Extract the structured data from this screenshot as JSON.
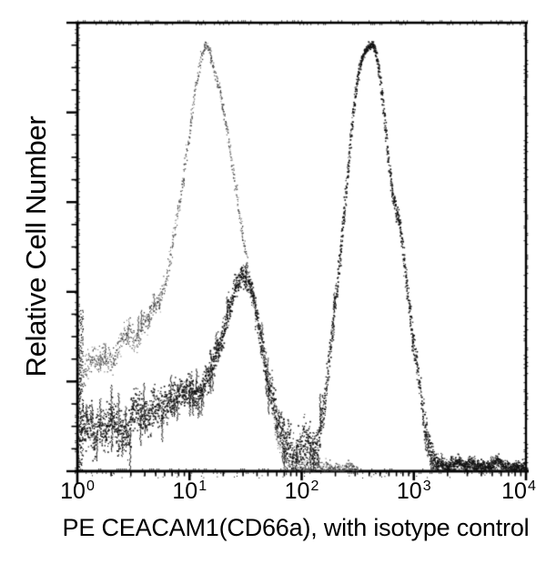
{
  "figure": {
    "background_color": "#ffffff",
    "axis_color": "#000000",
    "text_color": "#000000"
  },
  "chart_data": {
    "type": "line",
    "subtype": "flow_cytometry_overlay_histogram",
    "title": "",
    "xlabel": "PE CEACAM1(CD66a), with isotype control",
    "ylabel": "Relative Cell Number",
    "x_scale": "log10",
    "x_domain": [
      1,
      10000
    ],
    "grid": false,
    "legend": false,
    "x_ticks": [
      {
        "base": "10",
        "exp": "0"
      },
      {
        "base": "10",
        "exp": "1"
      },
      {
        "base": "10",
        "exp": "2"
      },
      {
        "base": "10",
        "exp": "3"
      },
      {
        "base": "10",
        "exp": "4"
      }
    ],
    "x_minor_ticks_per_decade": [
      2,
      3,
      4,
      5,
      6,
      7,
      8,
      9
    ],
    "y_axis": {
      "tick_labels_shown": false,
      "major_divisions": 5,
      "minors_between_majors": 3
    },
    "series": [
      {
        "name": "isotype control",
        "style": "stippled",
        "color": "#3f3f3f",
        "render": {
          "amp_base": 5,
          "amp_range": 18,
          "density": 4,
          "spike_p": 0.05,
          "dot_min": 0.8,
          "dot_max": 1.4
        },
        "points": [
          [
            0.0,
            0.243,
            1.1
          ],
          [
            0.05,
            0.227,
            1.1
          ],
          [
            0.1,
            0.252,
            1.1
          ],
          [
            0.15,
            0.235,
            1.1
          ],
          [
            0.2,
            0.258,
            1.1
          ],
          [
            0.25,
            0.245,
            1.1
          ],
          [
            0.3,
            0.262,
            1.1
          ],
          [
            0.35,
            0.278,
            1.1
          ],
          [
            0.4,
            0.286,
            1.1
          ],
          [
            0.45,
            0.302,
            1.1
          ],
          [
            0.5,
            0.292,
            1.1
          ],
          [
            0.55,
            0.318,
            1.1
          ],
          [
            0.6,
            0.333,
            1.05
          ],
          [
            0.65,
            0.353,
            1.05
          ],
          [
            0.7,
            0.369,
            1.05
          ],
          [
            0.75,
            0.389,
            1.0
          ],
          [
            0.8,
            0.448,
            1.0
          ],
          [
            0.85,
            0.517,
            1.0
          ],
          [
            0.9,
            0.588,
            1.0
          ],
          [
            0.95,
            0.678,
            1.0
          ],
          [
            1.0,
            0.767,
            1.0
          ],
          [
            1.05,
            0.856,
            1.0
          ],
          [
            1.1,
            0.925,
            1.0
          ],
          [
            1.15,
            0.953,
            1.0
          ],
          [
            1.2,
            0.913,
            1.0
          ],
          [
            1.24,
            0.872,
            1.0
          ],
          [
            1.27,
            0.852,
            1.0
          ],
          [
            1.3,
            0.803,
            1.0
          ],
          [
            1.35,
            0.73,
            1.0
          ],
          [
            1.4,
            0.645,
            1.0
          ],
          [
            1.45,
            0.57,
            1.0
          ],
          [
            1.5,
            0.483,
            1.0
          ],
          [
            1.55,
            0.41,
            1.0
          ],
          [
            1.6,
            0.357,
            1.0
          ],
          [
            1.65,
            0.284,
            1.0
          ],
          [
            1.7,
            0.207,
            1.0
          ],
          [
            1.75,
            0.138,
            1.0
          ],
          [
            1.8,
            0.081,
            1.0
          ],
          [
            1.85,
            0.045,
            0.9
          ],
          [
            1.9,
            0.026,
            0.8
          ],
          [
            1.95,
            0.018,
            0.7
          ],
          [
            2.0,
            0.014,
            0.6
          ],
          [
            2.1,
            0.01,
            0.5
          ],
          [
            2.2,
            0.008,
            0.4
          ],
          [
            2.3,
            0.006,
            0.35
          ],
          [
            2.4,
            0.006,
            0.3
          ],
          [
            2.5,
            0.004,
            0.3
          ]
        ]
      },
      {
        "name": "PE CEACAM1(CD66a)",
        "style": "dense_noisy",
        "color": "#121212",
        "render": {
          "amp_base": 5.5,
          "amp_range": 22,
          "density": 7,
          "spike_p": 0.09,
          "dot_min": 1.0,
          "dot_max": 1.8
        },
        "points": [
          [
            0.0,
            0.108,
            1.2
          ],
          [
            0.05,
            0.081,
            1.2
          ],
          [
            0.1,
            0.118,
            1.2
          ],
          [
            0.15,
            0.085,
            1.25
          ],
          [
            0.2,
            0.11,
            1.2
          ],
          [
            0.25,
            0.093,
            1.2
          ],
          [
            0.3,
            0.105,
            1.25
          ],
          [
            0.35,
            0.075,
            1.25
          ],
          [
            0.4,
            0.114,
            1.2
          ],
          [
            0.45,
            0.097,
            1.2
          ],
          [
            0.5,
            0.11,
            1.15
          ],
          [
            0.55,
            0.124,
            1.1
          ],
          [
            0.6,
            0.134,
            1.1
          ],
          [
            0.65,
            0.118,
            1.1
          ],
          [
            0.7,
            0.142,
            1.1
          ],
          [
            0.75,
            0.134,
            1.05
          ],
          [
            0.8,
            0.154,
            1.05
          ],
          [
            0.85,
            0.164,
            1.05
          ],
          [
            0.9,
            0.158,
            1.05
          ],
          [
            0.95,
            0.176,
            1.0
          ],
          [
            1.0,
            0.183,
            1.0
          ],
          [
            1.05,
            0.181,
            1.0
          ],
          [
            1.1,
            0.201,
            1.0
          ],
          [
            1.15,
            0.213,
            1.0
          ],
          [
            1.2,
            0.229,
            1.0
          ],
          [
            1.25,
            0.264,
            1.0
          ],
          [
            1.3,
            0.316,
            1.0
          ],
          [
            1.35,
            0.377,
            1.0
          ],
          [
            1.4,
            0.418,
            1.0
          ],
          [
            1.45,
            0.436,
            1.0
          ],
          [
            1.5,
            0.424,
            1.0
          ],
          [
            1.55,
            0.394,
            1.0
          ],
          [
            1.6,
            0.349,
            1.0
          ],
          [
            1.65,
            0.276,
            1.0
          ],
          [
            1.7,
            0.191,
            1.0
          ],
          [
            1.75,
            0.13,
            1.05
          ],
          [
            1.8,
            0.083,
            1.1
          ],
          [
            1.85,
            0.063,
            1.2
          ],
          [
            1.9,
            0.053,
            1.25
          ],
          [
            1.95,
            0.047,
            1.25
          ],
          [
            2.0,
            0.051,
            1.25
          ],
          [
            2.05,
            0.055,
            1.2
          ],
          [
            2.1,
            0.063,
            1.15
          ],
          [
            2.15,
            0.075,
            1.1
          ],
          [
            2.2,
            0.148,
            1.0
          ],
          [
            2.24,
            0.243,
            0.9
          ],
          [
            2.28,
            0.349,
            0.9
          ],
          [
            2.32,
            0.442,
            0.9
          ],
          [
            2.36,
            0.536,
            0.9
          ],
          [
            2.4,
            0.645,
            0.9
          ],
          [
            2.44,
            0.763,
            0.9
          ],
          [
            2.48,
            0.854,
            0.9
          ],
          [
            2.52,
            0.907,
            0.9
          ],
          [
            2.56,
            0.935,
            0.9
          ],
          [
            2.6,
            0.949,
            0.9
          ],
          [
            2.63,
            0.955,
            0.9
          ],
          [
            2.66,
            0.933,
            0.9
          ],
          [
            2.7,
            0.868,
            0.9
          ],
          [
            2.74,
            0.767,
            0.9
          ],
          [
            2.78,
            0.665,
            0.9
          ],
          [
            2.82,
            0.596,
            0.9
          ],
          [
            2.86,
            0.558,
            0.9
          ],
          [
            2.9,
            0.489,
            0.9
          ],
          [
            2.94,
            0.4,
            0.9
          ],
          [
            2.98,
            0.312,
            0.9
          ],
          [
            3.02,
            0.231,
            0.9
          ],
          [
            3.06,
            0.16,
            0.9
          ],
          [
            3.1,
            0.095,
            0.85
          ],
          [
            3.14,
            0.053,
            0.7
          ],
          [
            3.18,
            0.028,
            0.5
          ],
          [
            3.22,
            0.018,
            0.35
          ],
          [
            3.3,
            0.012,
            0.3
          ],
          [
            3.4,
            0.016,
            0.3
          ],
          [
            3.5,
            0.02,
            0.3
          ],
          [
            3.6,
            0.012,
            0.3
          ],
          [
            3.7,
            0.016,
            0.3
          ],
          [
            3.8,
            0.01,
            0.3
          ],
          [
            3.9,
            0.014,
            0.3
          ],
          [
            4.0,
            0.01,
            0.3
          ]
        ]
      }
    ]
  }
}
